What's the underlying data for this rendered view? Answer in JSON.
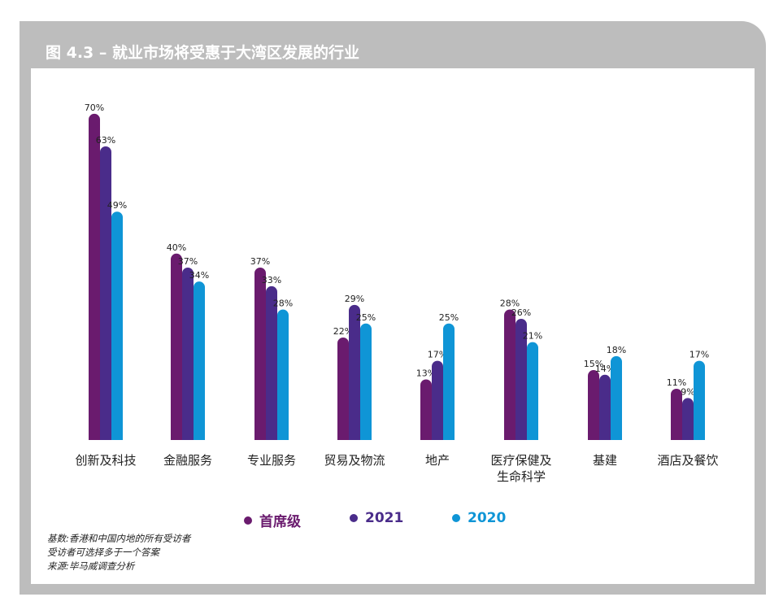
{
  "title": "图 4.3 – 就业市场将受惠于大湾区发展的行业",
  "chart_data": {
    "type": "bar",
    "categories": [
      "创新及科技",
      "金融服务",
      "专业服务",
      "贸易及物流",
      "地产",
      "医疗保健及生命科学",
      "基建",
      "酒店及餐饮"
    ],
    "series": [
      {
        "name": "首席级",
        "color": "#6a1b6e",
        "values": [
          70,
          40,
          37,
          22,
          13,
          28,
          15,
          11
        ]
      },
      {
        "name": "2021",
        "color": "#4a2c8a",
        "values": [
          63,
          37,
          33,
          29,
          17,
          26,
          14,
          9
        ]
      },
      {
        "name": "2020",
        "color": "#0f95d6",
        "values": [
          49,
          34,
          28,
          25,
          25,
          21,
          18,
          17
        ]
      }
    ],
    "value_suffix": "%",
    "ylim": [
      0,
      75
    ],
    "grid": false,
    "legend_position": "bottom"
  },
  "category_lines": [
    [
      "创新及科技"
    ],
    [
      "金融服务"
    ],
    [
      "专业服务"
    ],
    [
      "贸易及物流"
    ],
    [
      "地产"
    ],
    [
      "医疗保健及",
      "生命科学"
    ],
    [
      "基建"
    ],
    [
      "酒店及餐饮"
    ]
  ],
  "notes": [
    "基数:香港和中国内地的所有受访者",
    "受访者可选择多于一个答案",
    "来源:毕马威调查分析"
  ]
}
